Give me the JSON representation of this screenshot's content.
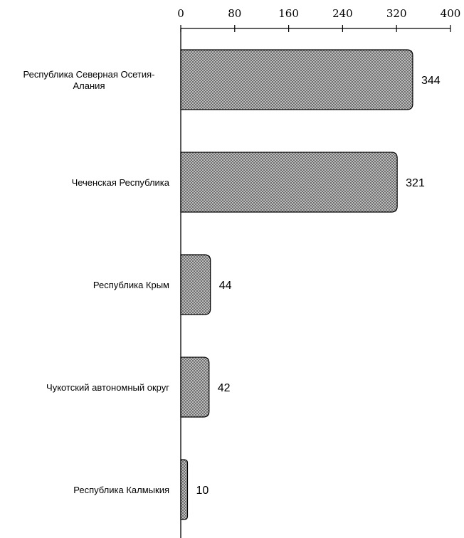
{
  "chart_data": {
    "type": "bar",
    "orientation": "horizontal",
    "categories": [
      [
        "Республика Северная Осетия-",
        "Алания"
      ],
      [
        "Чеченская Республика"
      ],
      [
        "Республика Крым"
      ],
      [
        "Чукотский автономный округ"
      ],
      [
        "Республика Калмыкия"
      ]
    ],
    "values": [
      344,
      321,
      44,
      42,
      10
    ],
    "xlim": [
      0,
      400
    ],
    "xticks": [
      0,
      80,
      160,
      240,
      320,
      400
    ],
    "axis_position": "top",
    "grid": false,
    "legend": "none",
    "bar_fill": "crosshatch",
    "colors": {
      "bar_fill_dark": "#6f6f6f",
      "bar_fill_light": "#bdbdbd",
      "bar_stroke": "#000000",
      "axis": "#000000"
    }
  }
}
